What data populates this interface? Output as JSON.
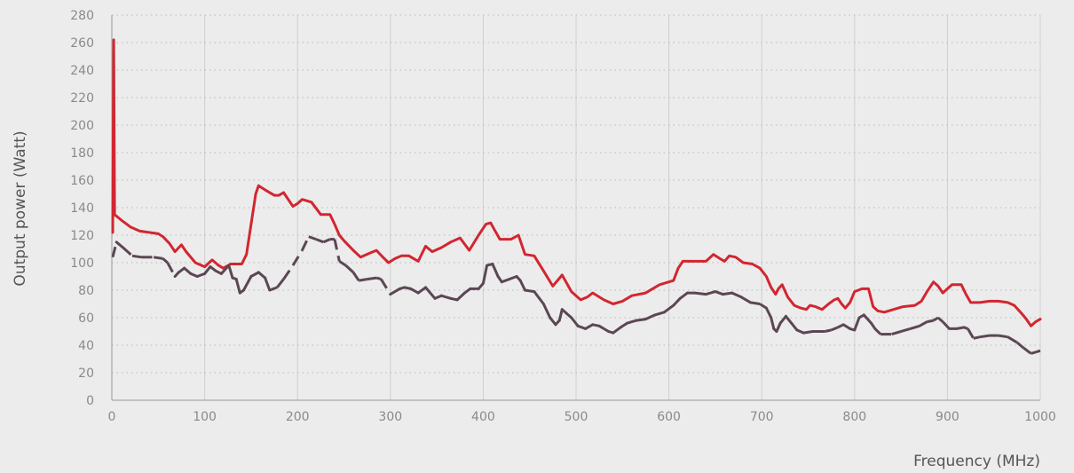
{
  "chart_data": {
    "type": "line",
    "xlabel": "Frequency (MHz)",
    "ylabel": "Output power (Watt)",
    "xlim": [
      0,
      1000
    ],
    "ylim": [
      0,
      280
    ],
    "xticks": [
      "0",
      "100",
      "200",
      "300",
      "400",
      "500",
      "600",
      "700",
      "800",
      "900",
      "1000"
    ],
    "yticks": [
      "0",
      "20",
      "40",
      "60",
      "80",
      "100",
      "120",
      "140",
      "160",
      "180",
      "200",
      "220",
      "240",
      "260",
      "280"
    ],
    "grid": {
      "vertical": "solid",
      "horizontal": "dotted"
    },
    "legend": "none",
    "colors": {
      "background": "#ececec",
      "grid": "#d0d0d0",
      "axis": "#999999"
    },
    "series": [
      {
        "color": "#d22630",
        "style": "solid",
        "points": [
          [
            1,
            122
          ],
          [
            2,
            262
          ],
          [
            3,
            135
          ],
          [
            10,
            131
          ],
          [
            20,
            126
          ],
          [
            30,
            123
          ],
          [
            40,
            122
          ],
          [
            50,
            121
          ],
          [
            55,
            119
          ],
          [
            62,
            114
          ],
          [
            68,
            108
          ],
          [
            75,
            113
          ],
          [
            80,
            108
          ],
          [
            90,
            100
          ],
          [
            100,
            97
          ],
          [
            108,
            102
          ],
          [
            115,
            98
          ],
          [
            120,
            96
          ],
          [
            128,
            99
          ],
          [
            135,
            99
          ],
          [
            140,
            99
          ],
          [
            145,
            106
          ],
          [
            150,
            128
          ],
          [
            155,
            150
          ],
          [
            158,
            156
          ],
          [
            165,
            153
          ],
          [
            175,
            149
          ],
          [
            180,
            149
          ],
          [
            185,
            151
          ],
          [
            195,
            141
          ],
          [
            200,
            143
          ],
          [
            205,
            146
          ],
          [
            215,
            144
          ],
          [
            225,
            135
          ],
          [
            235,
            135
          ],
          [
            240,
            128
          ],
          [
            245,
            120
          ],
          [
            250,
            116
          ],
          [
            260,
            109
          ],
          [
            268,
            104
          ],
          [
            278,
            107
          ],
          [
            285,
            109
          ],
          [
            292,
            104
          ],
          [
            298,
            100
          ],
          [
            305,
            103
          ],
          [
            312,
            105
          ],
          [
            320,
            105
          ],
          [
            330,
            101
          ],
          [
            338,
            112
          ],
          [
            345,
            108
          ],
          [
            355,
            111
          ],
          [
            365,
            115
          ],
          [
            375,
            118
          ],
          [
            385,
            109
          ],
          [
            395,
            120
          ],
          [
            403,
            128
          ],
          [
            408,
            129
          ],
          [
            412,
            124
          ],
          [
            418,
            117
          ],
          [
            430,
            117
          ],
          [
            438,
            120
          ],
          [
            445,
            106
          ],
          [
            455,
            105
          ],
          [
            465,
            94
          ],
          [
            475,
            83
          ],
          [
            480,
            87
          ],
          [
            485,
            91
          ],
          [
            495,
            79
          ],
          [
            505,
            73
          ],
          [
            512,
            75
          ],
          [
            518,
            78
          ],
          [
            530,
            73
          ],
          [
            540,
            70
          ],
          [
            550,
            72
          ],
          [
            560,
            76
          ],
          [
            575,
            78
          ],
          [
            590,
            84
          ],
          [
            600,
            86
          ],
          [
            605,
            87
          ],
          [
            610,
            96
          ],
          [
            615,
            101
          ],
          [
            625,
            101
          ],
          [
            640,
            101
          ],
          [
            648,
            106
          ],
          [
            655,
            103
          ],
          [
            660,
            101
          ],
          [
            665,
            105
          ],
          [
            672,
            104
          ],
          [
            680,
            100
          ],
          [
            690,
            99
          ],
          [
            698,
            96
          ],
          [
            705,
            90
          ],
          [
            710,
            82
          ],
          [
            715,
            77
          ],
          [
            718,
            81
          ],
          [
            722,
            84
          ],
          [
            728,
            75
          ],
          [
            735,
            69
          ],
          [
            742,
            67
          ],
          [
            748,
            66
          ],
          [
            752,
            69
          ],
          [
            758,
            68
          ],
          [
            765,
            66
          ],
          [
            772,
            70
          ],
          [
            778,
            73
          ],
          [
            782,
            74
          ],
          [
            786,
            70
          ],
          [
            790,
            67
          ],
          [
            795,
            71
          ],
          [
            800,
            79
          ],
          [
            808,
            81
          ],
          [
            815,
            81
          ],
          [
            820,
            68
          ],
          [
            825,
            65
          ],
          [
            832,
            64
          ],
          [
            842,
            66
          ],
          [
            852,
            68
          ],
          [
            865,
            69
          ],
          [
            872,
            72
          ],
          [
            878,
            79
          ],
          [
            885,
            86
          ],
          [
            890,
            83
          ],
          [
            895,
            78
          ],
          [
            900,
            81
          ],
          [
            905,
            84
          ],
          [
            915,
            84
          ],
          [
            920,
            77
          ],
          [
            925,
            71
          ],
          [
            935,
            71
          ],
          [
            945,
            72
          ],
          [
            955,
            72
          ],
          [
            965,
            71
          ],
          [
            972,
            69
          ],
          [
            980,
            63
          ],
          [
            985,
            59
          ],
          [
            990,
            54
          ],
          [
            995,
            57
          ],
          [
            1000,
            59
          ]
        ]
      },
      {
        "color": "#5b4754",
        "style": "mixed",
        "points": [
          [
            1,
            104
          ],
          [
            5,
            115
          ],
          [
            12,
            111
          ],
          [
            22,
            105
          ],
          [
            32,
            104
          ],
          [
            45,
            104
          ],
          [
            55,
            103
          ],
          [
            60,
            100
          ],
          [
            68,
            90
          ],
          [
            72,
            93
          ],
          [
            78,
            96
          ],
          [
            85,
            92
          ],
          [
            92,
            90
          ],
          [
            100,
            92
          ],
          [
            106,
            97
          ],
          [
            112,
            94
          ],
          [
            118,
            92
          ],
          [
            126,
            98
          ],
          [
            130,
            89
          ],
          [
            134,
            88
          ],
          [
            138,
            78
          ],
          [
            142,
            80
          ],
          [
            150,
            90
          ],
          [
            158,
            93
          ],
          [
            165,
            89
          ],
          [
            170,
            80
          ],
          [
            178,
            82
          ],
          [
            185,
            88
          ],
          [
            195,
            98
          ],
          [
            205,
            109
          ],
          [
            212,
            119
          ],
          [
            220,
            117
          ],
          [
            228,
            115
          ],
          [
            235,
            117
          ],
          [
            240,
            117
          ],
          [
            245,
            101
          ],
          [
            252,
            98
          ],
          [
            260,
            93
          ],
          [
            266,
            87
          ],
          [
            275,
            88
          ],
          [
            285,
            89
          ],
          [
            290,
            88
          ],
          [
            300,
            77
          ],
          [
            310,
            81
          ],
          [
            315,
            82
          ],
          [
            322,
            81
          ],
          [
            330,
            78
          ],
          [
            338,
            82
          ],
          [
            348,
            74
          ],
          [
            355,
            76
          ],
          [
            365,
            74
          ],
          [
            372,
            73
          ],
          [
            380,
            78
          ],
          [
            386,
            81
          ],
          [
            395,
            81
          ],
          [
            400,
            85
          ],
          [
            404,
            98
          ],
          [
            410,
            99
          ],
          [
            416,
            90
          ],
          [
            420,
            86
          ],
          [
            428,
            88
          ],
          [
            436,
            90
          ],
          [
            440,
            87
          ],
          [
            445,
            80
          ],
          [
            455,
            79
          ],
          [
            465,
            70
          ],
          [
            472,
            60
          ],
          [
            478,
            55
          ],
          [
            482,
            58
          ],
          [
            485,
            66
          ],
          [
            490,
            63
          ],
          [
            495,
            60
          ],
          [
            502,
            54
          ],
          [
            510,
            52
          ],
          [
            518,
            55
          ],
          [
            525,
            54
          ],
          [
            535,
            50
          ],
          [
            540,
            49
          ],
          [
            548,
            53
          ],
          [
            555,
            56
          ],
          [
            565,
            58
          ],
          [
            575,
            59
          ],
          [
            585,
            62
          ],
          [
            595,
            64
          ],
          [
            605,
            69
          ],
          [
            612,
            74
          ],
          [
            620,
            78
          ],
          [
            628,
            78
          ],
          [
            640,
            77
          ],
          [
            650,
            79
          ],
          [
            658,
            77
          ],
          [
            668,
            78
          ],
          [
            678,
            75
          ],
          [
            688,
            71
          ],
          [
            698,
            70
          ],
          [
            705,
            67
          ],
          [
            710,
            60
          ],
          [
            713,
            52
          ],
          [
            716,
            50
          ],
          [
            720,
            56
          ],
          [
            726,
            61
          ],
          [
            732,
            56
          ],
          [
            738,
            51
          ],
          [
            745,
            49
          ],
          [
            755,
            50
          ],
          [
            762,
            50
          ],
          [
            768,
            50
          ],
          [
            775,
            51
          ],
          [
            782,
            53
          ],
          [
            788,
            55
          ],
          [
            795,
            52
          ],
          [
            800,
            51
          ],
          [
            805,
            60
          ],
          [
            810,
            62
          ],
          [
            818,
            56
          ],
          [
            822,
            52
          ],
          [
            828,
            48
          ],
          [
            840,
            48
          ],
          [
            850,
            50
          ],
          [
            860,
            52
          ],
          [
            870,
            54
          ],
          [
            878,
            57
          ],
          [
            885,
            58
          ],
          [
            890,
            60
          ],
          [
            895,
            57
          ],
          [
            902,
            52
          ],
          [
            910,
            52
          ],
          [
            918,
            53
          ],
          [
            922,
            52
          ],
          [
            928,
            45
          ],
          [
            935,
            46
          ],
          [
            945,
            47
          ],
          [
            955,
            47
          ],
          [
            965,
            46
          ],
          [
            975,
            42
          ],
          [
            982,
            38
          ],
          [
            990,
            34
          ],
          [
            995,
            35
          ],
          [
            1000,
            36
          ]
        ],
        "dashed_ranges": [
          [
            0,
            3
          ],
          [
            12,
            66
          ],
          [
            170,
            245
          ],
          [
            248,
            300
          ],
          [
            690,
            705
          ],
          [
            762,
            790
          ],
          [
            822,
            905
          ],
          [
            920,
            1000
          ]
        ]
      }
    ]
  }
}
